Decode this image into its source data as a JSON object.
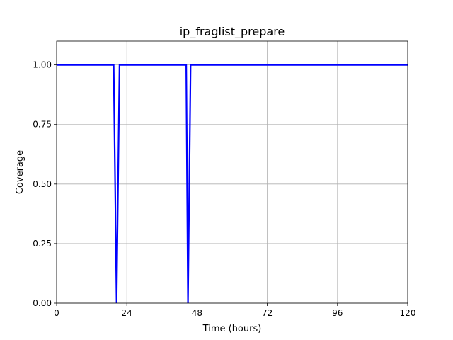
{
  "chart_data": {
    "type": "line",
    "title": "ip_fraglist_prepare",
    "xlabel": "Time (hours)",
    "ylabel": "Coverage",
    "xlim": [
      0,
      120
    ],
    "ylim": [
      0,
      1.1
    ],
    "xticks": [
      0,
      24,
      48,
      72,
      96,
      120
    ],
    "xtick_labels": [
      "0",
      "24",
      "48",
      "72",
      "96",
      "120"
    ],
    "yticks": [
      0,
      0.25,
      0.5,
      0.75,
      1.0
    ],
    "ytick_labels": [
      "0.00",
      "0.25",
      "0.50",
      "0.75",
      "1.00"
    ],
    "grid": true,
    "series": [
      {
        "color": "#0000ff",
        "x": [
          0,
          19.5,
          20.5,
          21.5,
          44.3,
          44.9,
          45.8,
          120
        ],
        "y": [
          1.0,
          1.0,
          0.0,
          1.0,
          1.0,
          0.0,
          1.0,
          1.0
        ]
      }
    ]
  }
}
